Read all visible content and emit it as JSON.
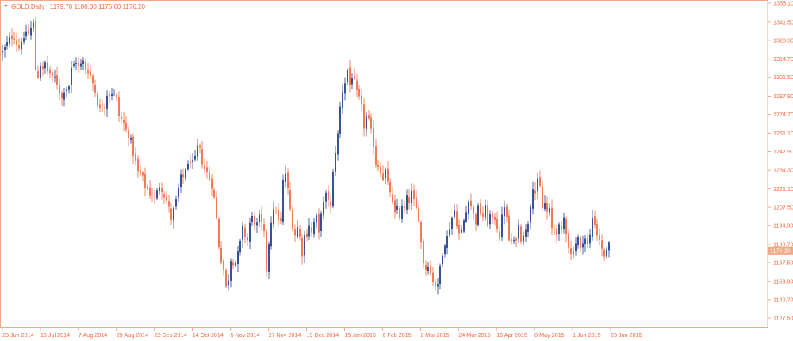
{
  "header": {
    "symbol_label": "GOLD,Daily",
    "ohlc_values": "1179.70 1180.30 1175.60 1176.20",
    "collapse_icon": "triangle-down-icon"
  },
  "colors": {
    "frame": "#f2a983",
    "bull": "#1f3f8c",
    "bear": "#f26b45",
    "text": "#f26b45",
    "price_tag_bg": "#f2a983",
    "price_tag_text": "#ffffff"
  },
  "chart_data": {
    "type": "candlestick",
    "title": "",
    "xlabel": "",
    "ylabel": "",
    "ylim": [
      1127.5,
      1355.1
    ],
    "grid": false,
    "y_ticks": [
      "1355.10",
      "1341.50",
      "1328.30",
      "1314.70",
      "1301.50",
      "1287.90",
      "1274.70",
      "1261.10",
      "1247.90",
      "1234.30",
      "1221.10",
      "1207.50",
      "1194.30",
      "1180.70",
      "1167.50",
      "1153.90",
      "1140.70",
      "1127.50"
    ],
    "x_ticks": [
      "23 Jun 2014",
      "16 Jul 2014",
      "7 Aug 2014",
      "29 Aug 2014",
      "22 Sep 2014",
      "14 Oct 2014",
      "5 Nov 2014",
      "27 Nov 2014",
      "19 Dec 2014",
      "15 Jan 2015",
      "6 Feb 2015",
      "2 Mar 2015",
      "24 Mar 2015",
      "16 Apr 2015",
      "8 May 2015",
      "1 Jun 2015",
      "23 Jun 2015"
    ],
    "current_price": "1176.20",
    "close_path": [
      [
        0,
        1320
      ],
      [
        4,
        1320
      ],
      [
        9,
        1326
      ],
      [
        14,
        1331
      ],
      [
        19,
        1330
      ],
      [
        22,
        1324
      ],
      [
        25,
        1322
      ],
      [
        27,
        1329
      ],
      [
        31,
        1327
      ],
      [
        33,
        1335
      ],
      [
        36,
        1333
      ],
      [
        38,
        1336
      ],
      [
        42,
        1340
      ],
      [
        44,
        1312
      ],
      [
        47,
        1298
      ],
      [
        50,
        1312
      ],
      [
        54,
        1306
      ],
      [
        57,
        1312
      ],
      [
        61,
        1304
      ],
      [
        64,
        1305
      ],
      [
        67,
        1298
      ],
      [
        70,
        1303
      ],
      [
        73,
        1294
      ],
      [
        76,
        1290
      ],
      [
        79,
        1284
      ],
      [
        82,
        1297
      ],
      [
        86,
        1290
      ],
      [
        89,
        1306
      ],
      [
        92,
        1310
      ],
      [
        94,
        1311
      ],
      [
        97,
        1314
      ],
      [
        100,
        1307
      ],
      [
        103,
        1312
      ],
      [
        106,
        1313
      ],
      [
        109,
        1304
      ],
      [
        112,
        1308
      ],
      [
        115,
        1300
      ],
      [
        118,
        1296
      ],
      [
        121,
        1289
      ],
      [
        124,
        1280
      ],
      [
        127,
        1277
      ],
      [
        130,
        1282
      ],
      [
        133,
        1281
      ],
      [
        136,
        1294
      ],
      [
        139,
        1287
      ],
      [
        142,
        1292
      ],
      [
        145,
        1288
      ],
      [
        148,
        1285
      ],
      [
        151,
        1268
      ],
      [
        154,
        1272
      ],
      [
        157,
        1266
      ],
      [
        160,
        1262
      ],
      [
        163,
        1259
      ],
      [
        166,
        1253
      ],
      [
        169,
        1243
      ],
      [
        172,
        1239
      ],
      [
        175,
        1230
      ],
      [
        178,
        1232
      ],
      [
        181,
        1227
      ],
      [
        184,
        1220
      ],
      [
        187,
        1221
      ],
      [
        190,
        1215
      ],
      [
        193,
        1218
      ],
      [
        196,
        1212
      ],
      [
        199,
        1222
      ],
      [
        202,
        1224
      ],
      [
        205,
        1219
      ],
      [
        208,
        1215
      ],
      [
        211,
        1211
      ],
      [
        214,
        1204
      ],
      [
        217,
        1197
      ],
      [
        220,
        1210
      ],
      [
        223,
        1213
      ],
      [
        226,
        1225
      ],
      [
        229,
        1231
      ],
      [
        232,
        1228
      ],
      [
        235,
        1240
      ],
      [
        238,
        1236
      ],
      [
        241,
        1244
      ],
      [
        244,
        1237
      ],
      [
        247,
        1245
      ],
      [
        250,
        1254
      ],
      [
        253,
        1246
      ],
      [
        256,
        1238
      ],
      [
        259,
        1234
      ],
      [
        262,
        1232
      ],
      [
        265,
        1226
      ],
      [
        268,
        1222
      ],
      [
        271,
        1210
      ],
      [
        274,
        1194
      ],
      [
        277,
        1173
      ],
      [
        280,
        1168
      ],
      [
        283,
        1160
      ],
      [
        286,
        1145
      ],
      [
        288,
        1156
      ],
      [
        291,
        1170
      ],
      [
        294,
        1168
      ],
      [
        297,
        1168
      ],
      [
        300,
        1174
      ],
      [
        303,
        1182
      ],
      [
        306,
        1192
      ],
      [
        309,
        1187
      ],
      [
        312,
        1184
      ],
      [
        315,
        1196
      ],
      [
        318,
        1200
      ],
      [
        321,
        1196
      ],
      [
        324,
        1195
      ],
      [
        327,
        1200
      ],
      [
        330,
        1195
      ],
      [
        333,
        1188
      ],
      [
        336,
        1163
      ],
      [
        339,
        1182
      ],
      [
        342,
        1198
      ],
      [
        345,
        1204
      ],
      [
        348,
        1207
      ],
      [
        351,
        1197
      ],
      [
        354,
        1197
      ],
      [
        357,
        1226
      ],
      [
        360,
        1232
      ],
      [
        363,
        1220
      ],
      [
        366,
        1206
      ],
      [
        369,
        1194
      ],
      [
        372,
        1188
      ],
      [
        375,
        1193
      ],
      [
        378,
        1186
      ],
      [
        381,
        1174
      ],
      [
        384,
        1187
      ],
      [
        387,
        1188
      ],
      [
        390,
        1195
      ],
      [
        393,
        1189
      ],
      [
        396,
        1197
      ],
      [
        399,
        1200
      ],
      [
        402,
        1188
      ],
      [
        405,
        1205
      ],
      [
        408,
        1210
      ],
      [
        411,
        1216
      ],
      [
        414,
        1214
      ],
      [
        417,
        1208
      ],
      [
        420,
        1232
      ],
      [
        423,
        1248
      ],
      [
        426,
        1260
      ],
      [
        429,
        1280
      ],
      [
        432,
        1292
      ],
      [
        435,
        1298
      ],
      [
        438,
        1307
      ],
      [
        441,
        1296
      ],
      [
        444,
        1303
      ],
      [
        447,
        1298
      ],
      [
        450,
        1290
      ],
      [
        453,
        1286
      ],
      [
        456,
        1280
      ],
      [
        459,
        1266
      ],
      [
        462,
        1273
      ],
      [
        465,
        1270
      ],
      [
        468,
        1262
      ],
      [
        471,
        1253
      ],
      [
        474,
        1239
      ],
      [
        477,
        1238
      ],
      [
        480,
        1234
      ],
      [
        483,
        1229
      ],
      [
        486,
        1234
      ],
      [
        489,
        1224
      ],
      [
        492,
        1219
      ],
      [
        495,
        1210
      ],
      [
        498,
        1202
      ],
      [
        501,
        1208
      ],
      [
        504,
        1201
      ],
      [
        507,
        1207
      ],
      [
        510,
        1206
      ],
      [
        513,
        1214
      ],
      [
        516,
        1212
      ],
      [
        519,
        1218
      ],
      [
        522,
        1212
      ],
      [
        525,
        1206
      ],
      [
        528,
        1200
      ],
      [
        531,
        1182
      ],
      [
        534,
        1168
      ],
      [
        537,
        1163
      ],
      [
        540,
        1167
      ],
      [
        543,
        1160
      ],
      [
        546,
        1155
      ],
      [
        549,
        1152
      ],
      [
        552,
        1150
      ],
      [
        555,
        1165
      ],
      [
        558,
        1175
      ],
      [
        561,
        1182
      ],
      [
        564,
        1186
      ],
      [
        567,
        1193
      ],
      [
        570,
        1200
      ],
      [
        573,
        1205
      ],
      [
        576,
        1196
      ],
      [
        579,
        1188
      ],
      [
        582,
        1190
      ],
      [
        585,
        1198
      ],
      [
        588,
        1204
      ],
      [
        591,
        1214
      ],
      [
        594,
        1209
      ],
      [
        597,
        1202
      ],
      [
        600,
        1197
      ],
      [
        603,
        1207
      ],
      [
        606,
        1204
      ],
      [
        609,
        1201
      ],
      [
        612,
        1207
      ],
      [
        615,
        1196
      ],
      [
        618,
        1202
      ],
      [
        621,
        1198
      ],
      [
        624,
        1200
      ],
      [
        627,
        1193
      ],
      [
        630,
        1187
      ],
      [
        633,
        1200
      ],
      [
        636,
        1209
      ],
      [
        639,
        1199
      ],
      [
        642,
        1184
      ],
      [
        645,
        1183
      ],
      [
        648,
        1182
      ],
      [
        651,
        1186
      ],
      [
        654,
        1194
      ],
      [
        657,
        1185
      ],
      [
        660,
        1189
      ],
      [
        663,
        1190
      ],
      [
        666,
        1197
      ],
      [
        669,
        1210
      ],
      [
        672,
        1223
      ],
      [
        675,
        1218
      ],
      [
        678,
        1226
      ],
      [
        681,
        1222
      ],
      [
        684,
        1207
      ],
      [
        687,
        1210
      ],
      [
        690,
        1204
      ],
      [
        693,
        1205
      ],
      [
        696,
        1192
      ],
      [
        699,
        1192
      ],
      [
        702,
        1190
      ],
      [
        705,
        1193
      ],
      [
        708,
        1190
      ],
      [
        711,
        1200
      ],
      [
        714,
        1190
      ],
      [
        717,
        1180
      ],
      [
        720,
        1173
      ],
      [
        723,
        1177
      ],
      [
        726,
        1182
      ],
      [
        729,
        1185
      ],
      [
        732,
        1177
      ],
      [
        735,
        1184
      ],
      [
        738,
        1185
      ],
      [
        741,
        1180
      ],
      [
        744,
        1187
      ],
      [
        747,
        1200
      ],
      [
        750,
        1196
      ],
      [
        753,
        1188
      ],
      [
        756,
        1185
      ],
      [
        759,
        1176
      ],
      [
        762,
        1173
      ],
      [
        765,
        1175
      ],
      [
        768,
        1180
      ],
      [
        771,
        1176
      ]
    ]
  }
}
